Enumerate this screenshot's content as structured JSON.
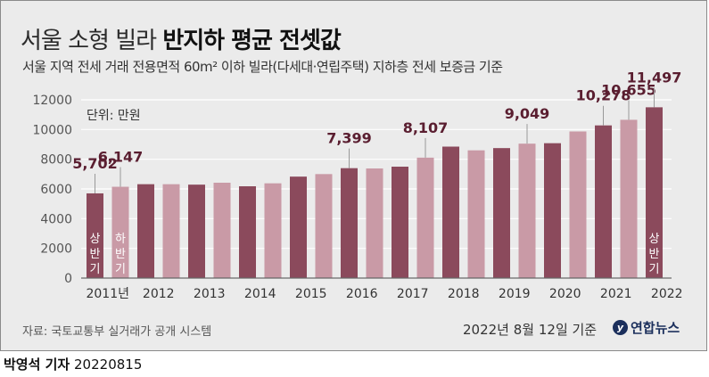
{
  "title_light": "서울 소형 빌라",
  "title_bold": "반지하 평균 전셋값",
  "subtitle": "서울 지역 전세 거래 전용면적 60m² 이하 빌라(다세대·연립주택) 지하층 전세 보증금 기준",
  "source": "자료: 국토교통부 실거래가 공개 시스템",
  "date": "2022년 8월 12일 기준",
  "logo_mark": "y",
  "logo_text": "연합뉴스",
  "credit_name": "박영석 기자",
  "credit_date": "20220815",
  "colors": {
    "dark": "#8b4a5c",
    "light": "#c99aa6",
    "grid": "#ffffff",
    "label": "#5a1e30"
  },
  "chart_data": {
    "type": "bar",
    "unit_label": "단위: 만원",
    "ylim": [
      0,
      12000
    ],
    "yticks": [
      0,
      2000,
      4000,
      6000,
      8000,
      10000,
      12000
    ],
    "ytick_labels": [
      "0",
      "2000",
      "4000",
      "6000",
      "8000",
      "10000",
      "12000"
    ],
    "x_labels": [
      "2011년",
      "2012",
      "2013",
      "2014",
      "2015",
      "2016",
      "2017",
      "2018",
      "2019",
      "2020",
      "2021",
      "2022"
    ],
    "bars": [
      {
        "value": 5702,
        "label": "5,702",
        "inner": "상반기",
        "shade": "dark"
      },
      {
        "value": 6147,
        "label": "6,147",
        "inner": "하반기",
        "shade": "light"
      },
      {
        "value": 6320,
        "label": "",
        "inner": "",
        "shade": "dark"
      },
      {
        "value": 6320,
        "label": "",
        "inner": "",
        "shade": "light"
      },
      {
        "value": 6290,
        "label": "",
        "inner": "",
        "shade": "dark"
      },
      {
        "value": 6420,
        "label": "",
        "inner": "",
        "shade": "light"
      },
      {
        "value": 6180,
        "label": "",
        "inner": "",
        "shade": "dark"
      },
      {
        "value": 6380,
        "label": "",
        "inner": "",
        "shade": "light"
      },
      {
        "value": 6830,
        "label": "",
        "inner": "",
        "shade": "dark"
      },
      {
        "value": 7000,
        "label": "",
        "inner": "",
        "shade": "light"
      },
      {
        "value": 7399,
        "label": "7,399",
        "inner": "",
        "shade": "dark"
      },
      {
        "value": 7380,
        "label": "",
        "inner": "",
        "shade": "light"
      },
      {
        "value": 7500,
        "label": "",
        "inner": "",
        "shade": "dark"
      },
      {
        "value": 8107,
        "label": "8,107",
        "inner": "",
        "shade": "light"
      },
      {
        "value": 8850,
        "label": "",
        "inner": "",
        "shade": "dark"
      },
      {
        "value": 8600,
        "label": "",
        "inner": "",
        "shade": "light"
      },
      {
        "value": 8750,
        "label": "",
        "inner": "",
        "shade": "dark"
      },
      {
        "value": 9049,
        "label": "9,049",
        "inner": "",
        "shade": "light"
      },
      {
        "value": 9080,
        "label": "",
        "inner": "",
        "shade": "dark"
      },
      {
        "value": 9870,
        "label": "",
        "inner": "",
        "shade": "light"
      },
      {
        "value": 10278,
        "label": "10,278",
        "inner": "",
        "shade": "dark"
      },
      {
        "value": 10655,
        "label": "10,655",
        "inner": "",
        "shade": "light"
      },
      {
        "value": 11497,
        "label": "11,497",
        "inner": "상반기",
        "shade": "dark"
      }
    ]
  }
}
